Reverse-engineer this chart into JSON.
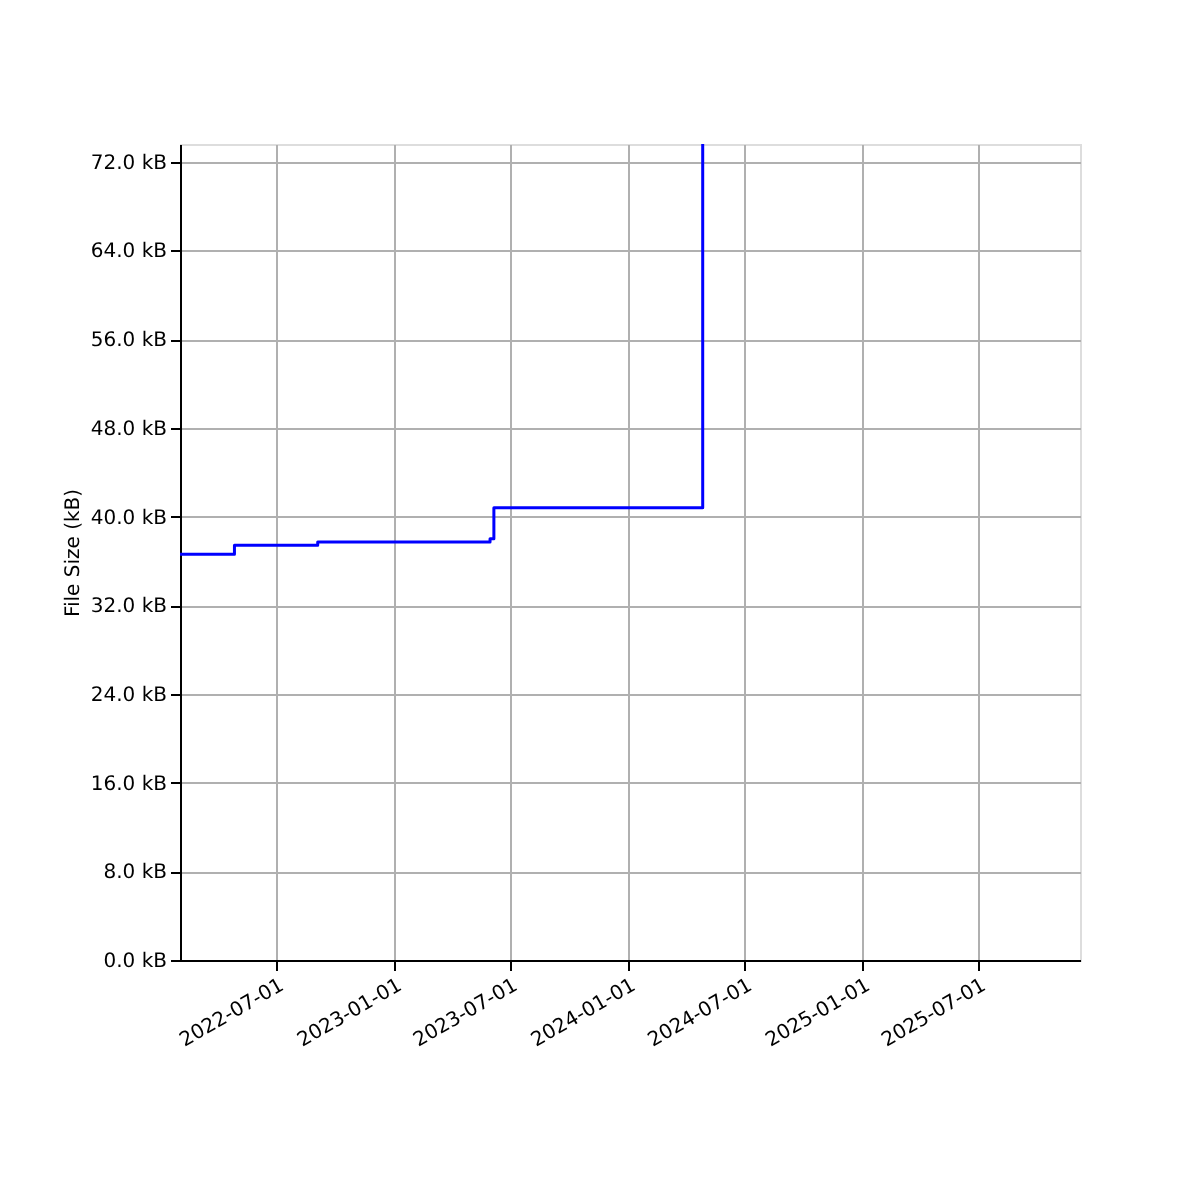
{
  "chart_data": {
    "type": "step",
    "ylabel": "File Size (kB)",
    "x": [
      "2022-02-01",
      "2022-04-27",
      "2022-09-04",
      "2023-05-31",
      "2023-06-06",
      "2024-04-27"
    ],
    "series": [
      {
        "color": "#0000ff",
        "values": [
          36.6,
          37.4,
          37.7,
          38.0,
          40.8,
          73.6
        ]
      }
    ],
    "xlim": [
      "2022-02-01",
      "2025-12-07"
    ],
    "xticks": [
      "2022-07-01",
      "2023-01-01",
      "2023-07-01",
      "2024-01-01",
      "2024-07-01",
      "2025-01-01",
      "2025-07-01"
    ],
    "ylim": [
      0,
      73.6
    ],
    "yticks": [
      {
        "value": 0,
        "label": "0.0 kB"
      },
      {
        "value": 8,
        "label": "8.0 kB"
      },
      {
        "value": 16,
        "label": "16.0 kB"
      },
      {
        "value": 24,
        "label": "24.0 kB"
      },
      {
        "value": 32,
        "label": "32.0 kB"
      },
      {
        "value": 40,
        "label": "40.0 kB"
      },
      {
        "value": 48,
        "label": "48.0 kB"
      },
      {
        "value": 56,
        "label": "56.0 kB"
      },
      {
        "value": 64,
        "label": "64.0 kB"
      },
      {
        "value": 72,
        "label": "72.0 kB"
      }
    ],
    "grid": true,
    "line_style": "solid",
    "marker": "none"
  }
}
